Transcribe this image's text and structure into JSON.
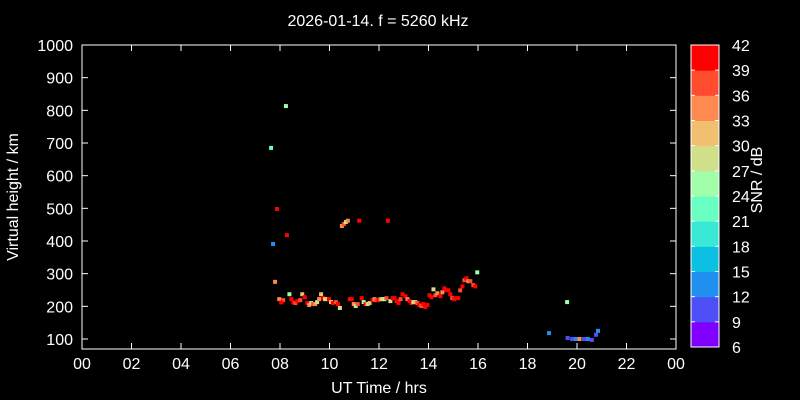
{
  "chart_data": {
    "type": "scatter",
    "title": "2026-01-14. f = 5260 kHz",
    "xlabel": "UT Time / hrs",
    "ylabel": "Virtual height / km",
    "xlim": [
      0,
      24
    ],
    "ylim": [
      70,
      1000
    ],
    "xticks": [
      "00",
      "02",
      "04",
      "06",
      "08",
      "10",
      "12",
      "14",
      "16",
      "18",
      "20",
      "22",
      "00"
    ],
    "yticks": [
      100,
      200,
      300,
      400,
      500,
      600,
      700,
      800,
      900,
      1000
    ],
    "grid": false,
    "colorbar": {
      "label": "SNR / dB",
      "ticks": [
        6,
        9,
        12,
        15,
        18,
        21,
        24,
        27,
        30,
        33,
        36,
        39,
        42
      ],
      "colors": [
        "#7f00ff",
        "#4f4ff8",
        "#2090f0",
        "#0cc0e4",
        "#3ae8d6",
        "#6affc2",
        "#a0ffa8",
        "#d0e08a",
        "#f0c070",
        "#ff8a50",
        "#ff4b2e",
        "#ff0000"
      ]
    },
    "series": [
      [
        7.64,
        685,
        22
      ],
      [
        8.24,
        813,
        25
      ],
      [
        7.88,
        498,
        39
      ],
      [
        8.28,
        418,
        39
      ],
      [
        7.72,
        391,
        12
      ],
      [
        7.8,
        275,
        35
      ],
      [
        7.97,
        222,
        35
      ],
      [
        8.13,
        219,
        36
      ],
      [
        8.05,
        212,
        39
      ],
      [
        8.38,
        237,
        25
      ],
      [
        8.46,
        222,
        42
      ],
      [
        8.54,
        212,
        39
      ],
      [
        8.62,
        210,
        36
      ],
      [
        8.7,
        216,
        39
      ],
      [
        8.82,
        219,
        36
      ],
      [
        8.9,
        237,
        32
      ],
      [
        9.0,
        228,
        42
      ],
      [
        9.1,
        210,
        39
      ],
      [
        9.18,
        204,
        35
      ],
      [
        9.26,
        210,
        28
      ],
      [
        9.34,
        207,
        36
      ],
      [
        9.42,
        207,
        35
      ],
      [
        9.5,
        213,
        28
      ],
      [
        9.58,
        222,
        35
      ],
      [
        9.66,
        237,
        32
      ],
      [
        9.74,
        225,
        42
      ],
      [
        9.82,
        222,
        28
      ],
      [
        9.9,
        222,
        30
      ],
      [
        9.98,
        222,
        42
      ],
      [
        10.06,
        213,
        30
      ],
      [
        10.14,
        210,
        42
      ],
      [
        10.26,
        213,
        36
      ],
      [
        10.34,
        207,
        39
      ],
      [
        10.42,
        195,
        27
      ],
      [
        10.5,
        446,
        35
      ],
      [
        10.58,
        452,
        36
      ],
      [
        10.66,
        458,
        27
      ],
      [
        10.74,
        462,
        33
      ],
      [
        11.2,
        462,
        39
      ],
      [
        12.36,
        462,
        39
      ],
      [
        10.82,
        222,
        42
      ],
      [
        10.9,
        222,
        42
      ],
      [
        10.98,
        207,
        35
      ],
      [
        11.06,
        201,
        28
      ],
      [
        11.14,
        207,
        36
      ],
      [
        11.3,
        225,
        42
      ],
      [
        11.38,
        213,
        25
      ],
      [
        11.46,
        207,
        42
      ],
      [
        11.54,
        207,
        28
      ],
      [
        11.62,
        210,
        30
      ],
      [
        11.74,
        219,
        39
      ],
      [
        11.82,
        222,
        33
      ],
      [
        11.9,
        219,
        36
      ],
      [
        11.98,
        219,
        42
      ],
      [
        12.06,
        222,
        33
      ],
      [
        12.14,
        222,
        28
      ],
      [
        12.22,
        222,
        25
      ],
      [
        12.3,
        225,
        36
      ],
      [
        12.46,
        216,
        27
      ],
      [
        12.55,
        225,
        42
      ],
      [
        12.63,
        225,
        42
      ],
      [
        12.71,
        216,
        42
      ],
      [
        12.79,
        210,
        42
      ],
      [
        12.87,
        222,
        36
      ],
      [
        12.95,
        237,
        42
      ],
      [
        13.07,
        231,
        39
      ],
      [
        13.15,
        222,
        33
      ],
      [
        13.23,
        216,
        42
      ],
      [
        13.31,
        210,
        39
      ],
      [
        13.39,
        213,
        28
      ],
      [
        13.47,
        213,
        30
      ],
      [
        13.55,
        210,
        36
      ],
      [
        13.63,
        204,
        39
      ],
      [
        13.71,
        201,
        36
      ],
      [
        13.79,
        207,
        39
      ],
      [
        13.87,
        198,
        42
      ],
      [
        13.96,
        204,
        39
      ],
      [
        14.04,
        234,
        42
      ],
      [
        14.12,
        228,
        39
      ],
      [
        14.2,
        252,
        28
      ],
      [
        14.28,
        234,
        36
      ],
      [
        14.36,
        240,
        33
      ],
      [
        14.48,
        231,
        42
      ],
      [
        14.56,
        243,
        33
      ],
      [
        14.64,
        255,
        42
      ],
      [
        14.72,
        249,
        42
      ],
      [
        14.8,
        249,
        39
      ],
      [
        14.88,
        237,
        42
      ],
      [
        14.96,
        225,
        36
      ],
      [
        15.04,
        222,
        39
      ],
      [
        15.12,
        225,
        42
      ],
      [
        15.2,
        225,
        42
      ],
      [
        15.28,
        249,
        36
      ],
      [
        15.37,
        261,
        42
      ],
      [
        15.45,
        280,
        36
      ],
      [
        15.53,
        286,
        39
      ],
      [
        15.61,
        277,
        33
      ],
      [
        15.69,
        277,
        36
      ],
      [
        15.81,
        265,
        36
      ],
      [
        15.89,
        261,
        42
      ],
      [
        15.97,
        304,
        24
      ],
      [
        18.87,
        118,
        12
      ],
      [
        19.6,
        213,
        25
      ],
      [
        19.62,
        103,
        9
      ],
      [
        19.8,
        100,
        9
      ],
      [
        19.96,
        100,
        12
      ],
      [
        20.1,
        100,
        33
      ],
      [
        20.28,
        100,
        9
      ],
      [
        20.44,
        100,
        12
      ],
      [
        20.6,
        97,
        9
      ],
      [
        20.77,
        113,
        9
      ],
      [
        20.85,
        125,
        12
      ]
    ]
  }
}
